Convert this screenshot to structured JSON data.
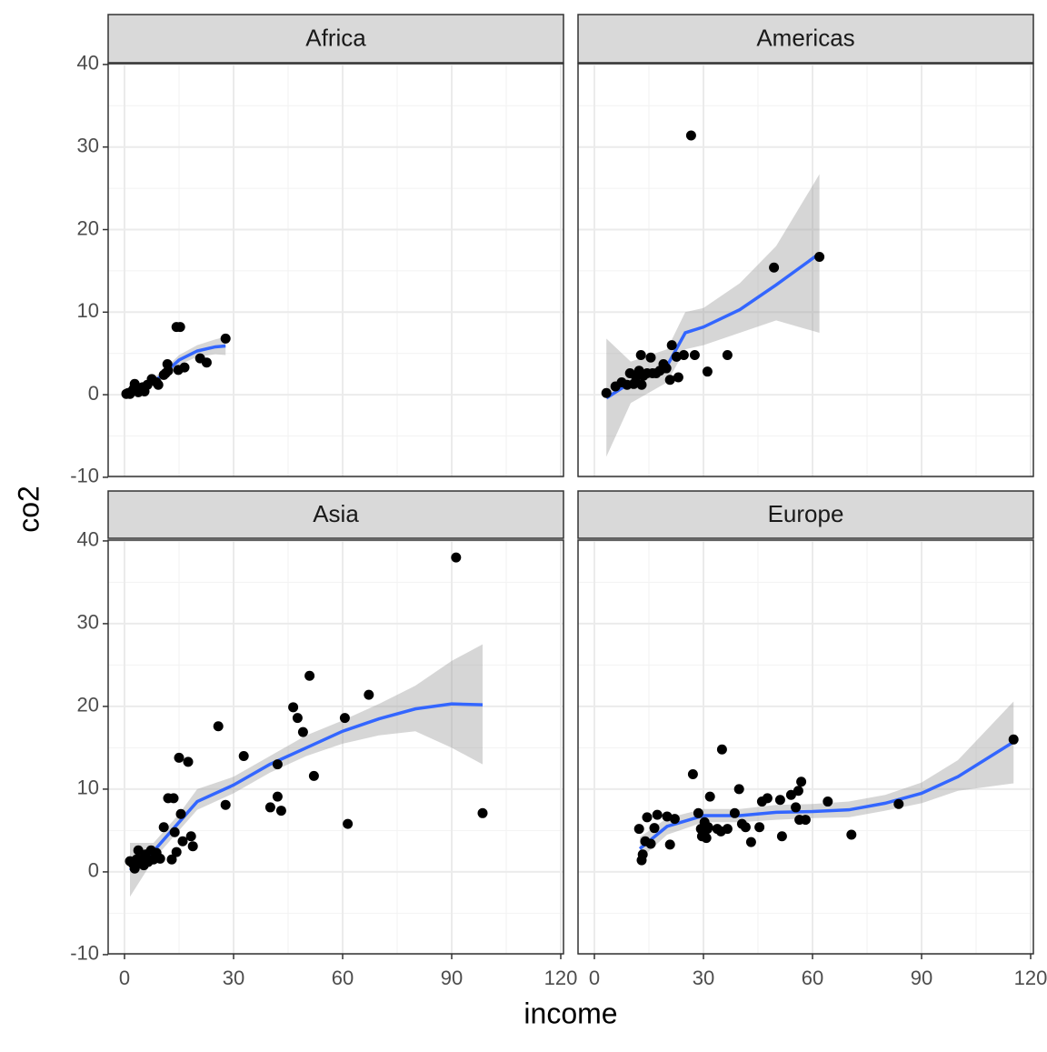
{
  "x_label": "income",
  "y_label": "co2",
  "chart_data": [
    {
      "type": "scatter",
      "title": "Africa",
      "xlim": [
        -4.5,
        120.75
      ],
      "ylim": [
        -9.9,
        40.1
      ],
      "xticks": [
        0,
        30,
        60,
        90,
        120
      ],
      "yticks": [
        -10,
        0,
        10,
        20,
        30,
        40
      ],
      "x_minor_ticks": [
        15,
        45,
        75,
        105
      ],
      "y_minor_ticks": [
        -5,
        5,
        15,
        25,
        35
      ],
      "grid": true,
      "color": "#000000",
      "x": [
        0.5,
        1,
        1.5,
        2,
        2.5,
        2.8,
        3.3,
        3.8,
        4.5,
        5,
        5.5,
        6.3,
        7.5,
        8.8,
        9.3,
        10.8,
        11.3,
        11.8,
        14.3,
        15.3,
        14.8,
        16.5,
        20.8,
        22.6,
        27.8,
        12
      ],
      "values": [
        0.1,
        0.2,
        0.1,
        0.4,
        0.7,
        1.3,
        0.7,
        0.3,
        0.8,
        0.9,
        0.4,
        1.2,
        1.9,
        1.5,
        1.2,
        2.4,
        2.6,
        3.7,
        8.2,
        8.2,
        3,
        3.3,
        4.4,
        3.9,
        6.8,
        2.9
      ],
      "fit": {
        "color": "#3366ff",
        "band_color": "#999999",
        "x": [
          0.5,
          5,
          10,
          15,
          20,
          25,
          27.8
        ],
        "values": [
          0,
          0.8,
          2.2,
          4.2,
          5.3,
          5.8,
          5.9
        ],
        "lower": [
          -0.5,
          0.4,
          1.7,
          3.6,
          4.6,
          4.9,
          4.8
        ],
        "upper": [
          0.5,
          1.2,
          2.7,
          4.8,
          6,
          6.7,
          7
        ]
      }
    },
    {
      "type": "scatter",
      "title": "Americas",
      "xlim": [
        -4.5,
        120.75
      ],
      "ylim": [
        -9.9,
        40.1
      ],
      "xticks": [
        0,
        30,
        60,
        90,
        120
      ],
      "yticks": [
        -10,
        0,
        10,
        20,
        30,
        40
      ],
      "x_minor_ticks": [
        15,
        45,
        75,
        105
      ],
      "y_minor_ticks": [
        -5,
        5,
        15,
        25,
        35
      ],
      "grid": true,
      "color": "#000000",
      "x": [
        3.3,
        5.8,
        7.5,
        9,
        9.8,
        10.8,
        11.5,
        12.3,
        12.8,
        13,
        13.5,
        14.5,
        15.5,
        16,
        17,
        18,
        19,
        19.8,
        20.8,
        21.3,
        22.6,
        23.1,
        24.6,
        27.6,
        31.1,
        36.6,
        26.6,
        49.4,
        61.9
      ],
      "values": [
        0.2,
        1,
        1.5,
        1.2,
        2.6,
        1.3,
        2.1,
        2.9,
        4.8,
        1.2,
        2.3,
        2.6,
        4.5,
        2.6,
        2.6,
        2.9,
        3.7,
        3.2,
        1.8,
        6,
        4.6,
        2.1,
        4.8,
        4.8,
        2.8,
        4.8,
        31.4,
        15.4,
        16.7
      ],
      "fit": {
        "color": "#3366ff",
        "band_color": "#999999",
        "x": [
          3.3,
          10,
          20,
          25,
          30,
          40,
          50,
          61.9
        ],
        "values": [
          -0.4,
          1.5,
          3.5,
          7.5,
          8.2,
          10.3,
          13.3,
          17.1
        ],
        "lower": [
          -7.5,
          -1,
          1.5,
          5.5,
          6,
          7.5,
          9,
          7.5
        ],
        "upper": [
          6.8,
          4,
          5.5,
          10,
          10.5,
          13.5,
          18,
          26.7
        ]
      }
    },
    {
      "type": "scatter",
      "title": "Asia",
      "xlim": [
        -4.5,
        120.75
      ],
      "ylim": [
        -9.9,
        40.1
      ],
      "xticks": [
        0,
        30,
        60,
        90,
        120
      ],
      "yticks": [
        -10,
        0,
        10,
        20,
        30,
        40
      ],
      "x_minor_ticks": [
        15,
        45,
        75,
        105
      ],
      "y_minor_ticks": [
        -5,
        5,
        15,
        25,
        35
      ],
      "grid": true,
      "color": "#000000",
      "x": [
        1.5,
        2.3,
        2.8,
        3.3,
        3.8,
        4.3,
        4.8,
        5.3,
        5.8,
        6.5,
        7.3,
        8,
        8.8,
        9.8,
        10.8,
        12,
        13.5,
        13,
        13.8,
        14.3,
        15,
        15.5,
        16,
        17.5,
        18.3,
        18.8,
        25.8,
        27.8,
        32.8,
        40.1,
        42.1,
        42.1,
        43.1,
        46.4,
        47.6,
        49.1,
        50.9,
        52.1,
        60.6,
        61.4,
        67.2,
        91.2,
        98.5
      ],
      "values": [
        1.3,
        1,
        0.4,
        1.5,
        2.6,
        1,
        1.5,
        0.8,
        2.1,
        1.2,
        2.6,
        1.5,
        2.3,
        1.6,
        5.4,
        8.9,
        8.9,
        1.5,
        4.8,
        2.4,
        13.8,
        7,
        3.7,
        13.3,
        4.3,
        3.1,
        17.6,
        8.1,
        14,
        7.8,
        13,
        9.1,
        7.4,
        19.9,
        18.6,
        16.9,
        23.7,
        11.6,
        18.6,
        5.8,
        21.4,
        38,
        7.1
      ],
      "fit": {
        "color": "#3366ff",
        "band_color": "#999999",
        "x": [
          1.5,
          8,
          15,
          20,
          30,
          40,
          50,
          60,
          70,
          80,
          90,
          98.5
        ],
        "values": [
          0.2,
          2.5,
          6,
          8.5,
          10.5,
          13,
          15,
          17,
          18.5,
          19.7,
          20.3,
          20.2
        ],
        "lower": [
          -3,
          1.5,
          5,
          7.5,
          9.5,
          12,
          14,
          15.5,
          16.5,
          17,
          15,
          13
        ],
        "upper": [
          3.5,
          3.5,
          7,
          10,
          11.5,
          14,
          16.5,
          18.3,
          20.3,
          22.5,
          25.5,
          27.5
        ]
      }
    },
    {
      "type": "scatter",
      "title": "Europe",
      "xlim": [
        -4.5,
        120.75
      ],
      "ylim": [
        -9.9,
        40.1
      ],
      "xticks": [
        0,
        30,
        60,
        90,
        120
      ],
      "yticks": [
        -10,
        0,
        10,
        20,
        30,
        40
      ],
      "x_minor_ticks": [
        15,
        45,
        75,
        105
      ],
      "y_minor_ticks": [
        -5,
        5,
        15,
        25,
        35
      ],
      "grid": true,
      "color": "#000000",
      "x": [
        12.3,
        13,
        13.3,
        14,
        14.5,
        15.5,
        16.5,
        17.3,
        20,
        20.8,
        22.1,
        27.1,
        28.6,
        29.3,
        29.6,
        30.3,
        30.8,
        31.1,
        31.3,
        31.8,
        33.8,
        34.8,
        35.1,
        36.6,
        38.6,
        39.8,
        40.6,
        41.6,
        43.1,
        45.4,
        46.1,
        47.6,
        51.6,
        51.1,
        54.1,
        55.4,
        56.1,
        56.4,
        56.9,
        58.1,
        64.2,
        70.7,
        83.7,
        115.3
      ],
      "values": [
        5.2,
        1.4,
        2.1,
        3.7,
        6.6,
        3.4,
        5.3,
        6.9,
        6.7,
        3.3,
        6.4,
        11.8,
        7.1,
        5.2,
        4.3,
        6,
        4.1,
        5.2,
        5.4,
        9.1,
        5.2,
        4.9,
        14.8,
        5.2,
        7.1,
        10,
        5.8,
        5.4,
        3.6,
        5.4,
        8.5,
        8.9,
        4.3,
        8.7,
        9.3,
        7.8,
        9.8,
        6.3,
        10.9,
        6.3,
        8.5,
        4.5,
        8.2,
        16
      ],
      "fit": {
        "color": "#3366ff",
        "band_color": "#999999",
        "x": [
          12.5,
          20,
          30,
          40,
          50,
          60,
          70,
          80,
          90,
          100,
          115.3
        ],
        "values": [
          2.8,
          5.5,
          6.8,
          6.8,
          7.2,
          7.3,
          7.5,
          8.3,
          9.5,
          11.5,
          15.7
        ],
        "lower": [
          1.5,
          4.5,
          6,
          6,
          6.3,
          6.5,
          6.6,
          7.4,
          8.3,
          9.8,
          10.7
        ],
        "upper": [
          4.2,
          6.5,
          7.6,
          7.6,
          8.1,
          8.2,
          8.5,
          9.3,
          10.8,
          13.5,
          20.6
        ]
      }
    }
  ]
}
